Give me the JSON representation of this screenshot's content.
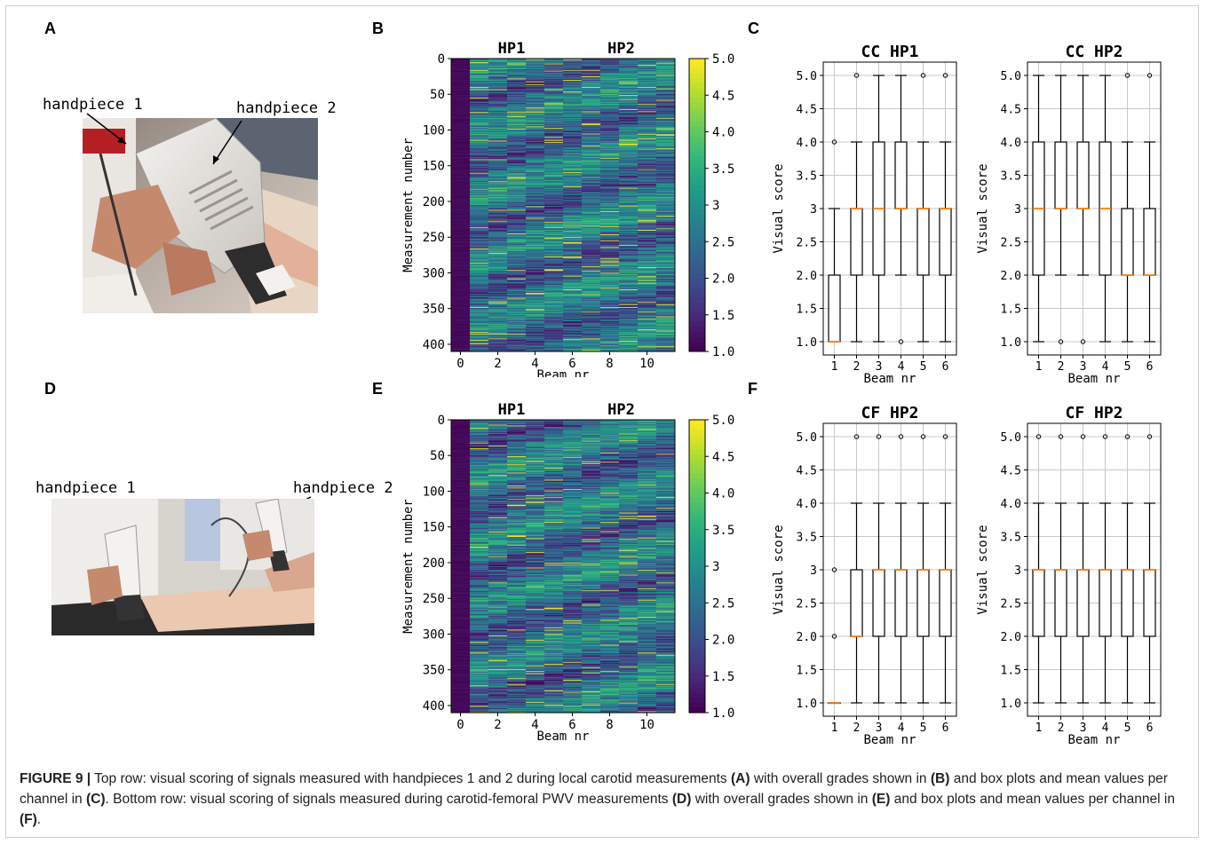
{
  "panel_letters": {
    "A": "A",
    "B": "B",
    "C": "C",
    "D": "D",
    "E": "E",
    "F": "F"
  },
  "photos": {
    "A": {
      "label_1": "handpiece 1",
      "label_2": "handpiece 2"
    },
    "D": {
      "label_1": "handpiece 1",
      "label_2": "handpiece 2"
    }
  },
  "caption": {
    "fig": "FIGURE 9 |",
    "t1": " Top row: visual scoring of signals measured with handpieces 1 and 2 during local carotid measurements ",
    "A": "(A)",
    "t2": " with overall grades shown in ",
    "B": "(B)",
    "t3": " and box plots and mean values per channel in ",
    "C": "(C)",
    "t4": ". Bottom row: visual scoring of signals measured during carotid-femoral PWV measurements ",
    "D": "(D)",
    "t5": " with overall grades shown in ",
    "E": "(E)",
    "t6": " and box plots and mean values per channel in ",
    "F": "(F)",
    "t7": "."
  },
  "colors": {
    "viridis_low": "#440154",
    "viridis_mid": "#21918c",
    "viridis_high": "#fde725",
    "median": "#ff7f0e"
  },
  "chart_data": [
    {
      "id": "B",
      "type": "heatmap",
      "title_left": "HP1",
      "title_right": "HP2",
      "xlabel": "Beam nr",
      "ylabel": "Measurement number",
      "x_ticks": [
        0,
        2,
        4,
        6,
        8,
        10
      ],
      "y_ticks": [
        0,
        50,
        100,
        150,
        200,
        250,
        300,
        350,
        400
      ],
      "colorbar_ticks": [
        "5.0",
        "4.5",
        "4.0",
        "3.5",
        "3",
        "2.5",
        "2.0",
        "1.5",
        "1.0"
      ],
      "rows": 410,
      "cols": 12,
      "vmin": 1.0,
      "vmax": 5.0
    },
    {
      "id": "E",
      "type": "heatmap",
      "title_left": "HP1",
      "title_right": "HP2",
      "xlabel": "Beam nr",
      "ylabel": "Measurement number",
      "x_ticks": [
        0,
        2,
        4,
        6,
        8,
        10
      ],
      "y_ticks": [
        0,
        50,
        100,
        150,
        200,
        250,
        300,
        350,
        400
      ],
      "colorbar_ticks": [
        "5.0",
        "4.5",
        "4.0",
        "3.5",
        "3",
        "2.5",
        "2.0",
        "1.5",
        "1.0"
      ],
      "rows": 410,
      "cols": 12,
      "vmin": 1.0,
      "vmax": 5.0
    },
    {
      "id": "C1",
      "type": "box",
      "title": "CC HP1",
      "xlabel": "Beam nr",
      "ylabel": "Visual score",
      "categories": [
        "1",
        "2",
        "3",
        "4",
        "5",
        "6"
      ],
      "y_ticks": [
        "1.0",
        "1.5",
        "2.0",
        "2.5",
        "3",
        "3.5",
        "4.0",
        "4.5",
        "5.0"
      ],
      "ylim": [
        0.8,
        5.2
      ],
      "boxes": [
        {
          "whislo": 1,
          "q1": 1,
          "med": 1,
          "q3": 2,
          "whishi": 3,
          "fliers": [
            4
          ]
        },
        {
          "whislo": 1,
          "q1": 2,
          "med": 3,
          "q3": 3,
          "whishi": 4,
          "fliers": [
            5
          ]
        },
        {
          "whislo": 1,
          "q1": 2,
          "med": 3,
          "q3": 4,
          "whishi": 5,
          "fliers": []
        },
        {
          "whislo": 2,
          "q1": 3,
          "med": 3,
          "q3": 4,
          "whishi": 5,
          "fliers": [
            1
          ]
        },
        {
          "whislo": 1,
          "q1": 2,
          "med": 3,
          "q3": 3,
          "whishi": 4,
          "fliers": [
            5
          ]
        },
        {
          "whislo": 1,
          "q1": 2,
          "med": 3,
          "q3": 3,
          "whishi": 4,
          "fliers": [
            5
          ]
        }
      ]
    },
    {
      "id": "C2",
      "type": "box",
      "title": "CC HP2",
      "xlabel": "Beam nr",
      "ylabel": "Visual score",
      "categories": [
        "1",
        "2",
        "3",
        "4",
        "5",
        "6"
      ],
      "y_ticks": [
        "1.0",
        "1.5",
        "2.0",
        "2.5",
        "3",
        "3.5",
        "4.0",
        "4.5",
        "5.0"
      ],
      "ylim": [
        0.8,
        5.2
      ],
      "boxes": [
        {
          "whislo": 1,
          "q1": 2,
          "med": 3,
          "q3": 4,
          "whishi": 5,
          "fliers": []
        },
        {
          "whislo": 2,
          "q1": 3,
          "med": 3,
          "q3": 4,
          "whishi": 5,
          "fliers": [
            1
          ]
        },
        {
          "whislo": 2,
          "q1": 3,
          "med": 3,
          "q3": 4,
          "whishi": 5,
          "fliers": [
            1
          ]
        },
        {
          "whislo": 1,
          "q1": 2,
          "med": 3,
          "q3": 4,
          "whishi": 5,
          "fliers": []
        },
        {
          "whislo": 1,
          "q1": 2,
          "med": 2,
          "q3": 3,
          "whishi": 4,
          "fliers": [
            5
          ]
        },
        {
          "whislo": 1,
          "q1": 2,
          "med": 2,
          "q3": 3,
          "whishi": 4,
          "fliers": [
            5
          ]
        }
      ]
    },
    {
      "id": "F1",
      "type": "box",
      "title": "CF HP2",
      "xlabel": "Beam nr",
      "ylabel": "Visual score",
      "categories": [
        "1",
        "2",
        "3",
        "4",
        "5",
        "6"
      ],
      "y_ticks": [
        "1.0",
        "1.5",
        "2.0",
        "2.5",
        "3",
        "3.5",
        "4.0",
        "4.5",
        "5.0"
      ],
      "ylim": [
        0.8,
        5.2
      ],
      "boxes": [
        {
          "whislo": 1,
          "q1": 1,
          "med": 1,
          "q3": 1,
          "whishi": 1,
          "fliers": [
            2,
            3
          ]
        },
        {
          "whislo": 1,
          "q1": 2,
          "med": 2,
          "q3": 3,
          "whishi": 4,
          "fliers": [
            5
          ]
        },
        {
          "whislo": 1,
          "q1": 2,
          "med": 3,
          "q3": 3,
          "whishi": 4,
          "fliers": [
            5
          ]
        },
        {
          "whislo": 1,
          "q1": 2,
          "med": 3,
          "q3": 3,
          "whishi": 4,
          "fliers": [
            5
          ]
        },
        {
          "whislo": 1,
          "q1": 2,
          "med": 3,
          "q3": 3,
          "whishi": 4,
          "fliers": [
            5
          ]
        },
        {
          "whislo": 1,
          "q1": 2,
          "med": 3,
          "q3": 3,
          "whishi": 4,
          "fliers": [
            5
          ]
        }
      ]
    },
    {
      "id": "F2",
      "type": "box",
      "title": "CF HP2",
      "xlabel": "Beam nr",
      "ylabel": "Visual score",
      "categories": [
        "1",
        "2",
        "3",
        "4",
        "5",
        "6"
      ],
      "y_ticks": [
        "1.0",
        "1.5",
        "2.0",
        "2.5",
        "3",
        "3.5",
        "4.0",
        "4.5",
        "5.0"
      ],
      "ylim": [
        0.8,
        5.2
      ],
      "boxes": [
        {
          "whislo": 1,
          "q1": 2,
          "med": 3,
          "q3": 3,
          "whishi": 4,
          "fliers": [
            5
          ]
        },
        {
          "whislo": 1,
          "q1": 2,
          "med": 3,
          "q3": 3,
          "whishi": 4,
          "fliers": [
            5
          ]
        },
        {
          "whislo": 1,
          "q1": 2,
          "med": 3,
          "q3": 3,
          "whishi": 4,
          "fliers": [
            5
          ]
        },
        {
          "whislo": 1,
          "q1": 2,
          "med": 3,
          "q3": 3,
          "whishi": 4,
          "fliers": [
            5
          ]
        },
        {
          "whislo": 1,
          "q1": 2,
          "med": 3,
          "q3": 3,
          "whishi": 4,
          "fliers": [
            5
          ]
        },
        {
          "whislo": 1,
          "q1": 2,
          "med": 3,
          "q3": 3,
          "whishi": 4,
          "fliers": [
            5
          ]
        }
      ]
    }
  ]
}
